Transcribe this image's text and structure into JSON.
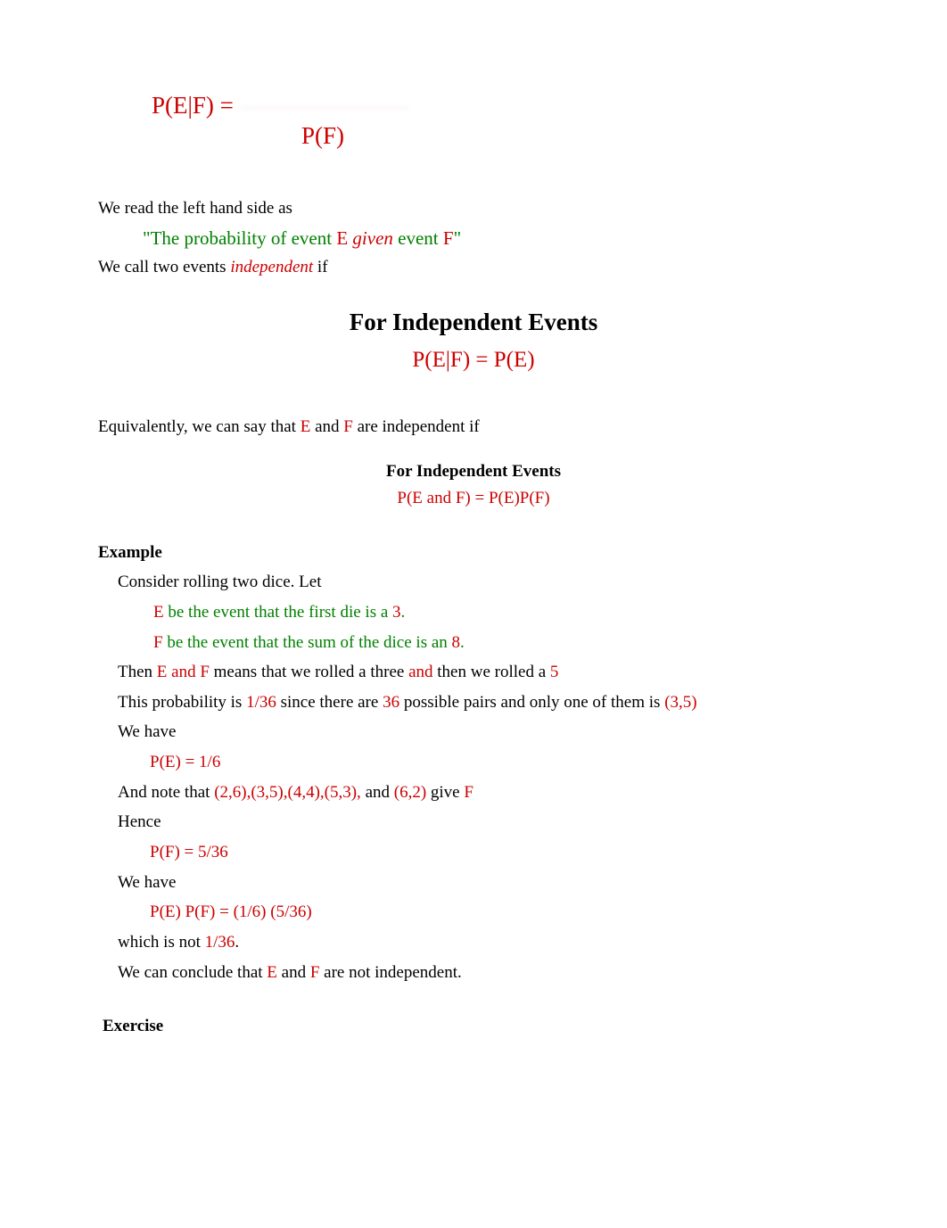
{
  "conditional_formula": {
    "lhs": "P(E|F) = ",
    "faded": "———————",
    "denominator": "P(F)"
  },
  "read_intro": "We read the left hand side as",
  "quote": {
    "p1": "\"The probability of event ",
    "e": "E",
    "given_space1": " ",
    "given": "given",
    "given_space2": " event ",
    "f": "F",
    "end": "\""
  },
  "call_two": {
    "p1": "We call two events  ",
    "independent": "independent",
    "p2": " if"
  },
  "box1": {
    "title": "For Independent Events",
    "formula": "P(E|F) = P(E)"
  },
  "equiv": {
    "p1": "Equivalently, we can say that ",
    "e": "E",
    "mid": " and ",
    "f": "F",
    "p2": " are independent if"
  },
  "box2": {
    "title": "For Independent Events",
    "formula": "P(E and F) = P(E)P(F)"
  },
  "example": {
    "heading": "Example",
    "consider": "Consider rolling two dice.  Let",
    "e_def": {
      "e": "E",
      "mid": " be the event that the first die is a ",
      "num": "3",
      "dot": "."
    },
    "f_def": {
      "f": "F",
      "mid": " be the event that the sum of the dice is an ",
      "num": "8",
      "dot": "."
    },
    "then_line": {
      "p1": "Then ",
      "ef": "E and F",
      "p2": " means that we rolled a three ",
      "and": "and",
      "p3": " then we rolled a ",
      "five": "5"
    },
    "prob_line": {
      "p1": "This probability is ",
      "v1": "1/36",
      "p2": " since there are ",
      "v2": "36",
      "p3": " possible pairs and only one of them is ",
      "v3": "(3,5)"
    },
    "we_have1": "We have",
    "pe": "P(E) = 1/6",
    "note_line": {
      "p1": "And note that ",
      "tuples": "(2,6),(3,5),(4,4),(5,3),",
      "p2": " and ",
      "last": "(6,2)",
      "p3": " give ",
      "f": "F"
    },
    "hence": "Hence",
    "pf": "P(F) = 5/36",
    "we_have2": "We have",
    "product": "P(E) P(F) = (1/6) (5/36)",
    "not_line": {
      "p1": "which is not ",
      "v": "1/36",
      "dot": "."
    },
    "conclude": {
      "p1": "We can conclude that ",
      "e": "E",
      "mid": " and ",
      "f": "F",
      "p2": " are not independent."
    }
  },
  "exercise_heading": "Exercise"
}
